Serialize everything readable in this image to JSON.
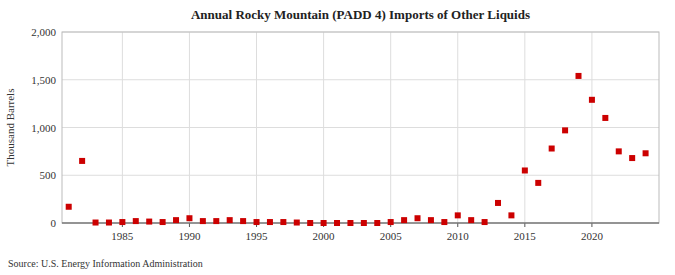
{
  "chart_data": {
    "type": "scatter",
    "title": "Annual Rocky Mountain (PADD 4) Imports of Other Liquids",
    "y_label": "Thousand Barrels",
    "source": "Source: U.S. Energy Information Administration",
    "color": "#cc0000",
    "marker": "square",
    "grid": true,
    "xlim": [
      1980.5,
      2025
    ],
    "xticks": [
      1985,
      1990,
      1995,
      2000,
      2005,
      2010,
      2015,
      2020
    ],
    "ylim": [
      0,
      2000
    ],
    "yticks": [
      0,
      500,
      {
        "value": 1000,
        "label": "1,000"
      },
      {
        "value": 1500,
        "label": "1,500"
      },
      {
        "value": 2000,
        "label": "2,000"
      }
    ],
    "x": [
      1981,
      1982,
      1983,
      1984,
      1985,
      1986,
      1987,
      1988,
      1989,
      1990,
      1991,
      1992,
      1993,
      1994,
      1995,
      1996,
      1997,
      1998,
      1999,
      2000,
      2001,
      2002,
      2003,
      2004,
      2005,
      2006,
      2007,
      2008,
      2009,
      2010,
      2011,
      2012,
      2013,
      2014,
      2015,
      2016,
      2017,
      2018,
      2019,
      2020,
      2021,
      2022,
      2023,
      2024
    ],
    "values": [
      170,
      650,
      5,
      5,
      10,
      20,
      15,
      10,
      30,
      50,
      20,
      20,
      30,
      20,
      10,
      10,
      10,
      5,
      0,
      0,
      0,
      0,
      0,
      0,
      10,
      30,
      50,
      30,
      10,
      80,
      30,
      10,
      210,
      80,
      550,
      420,
      780,
      970,
      1540,
      1290,
      1100,
      750,
      680,
      730
    ]
  }
}
